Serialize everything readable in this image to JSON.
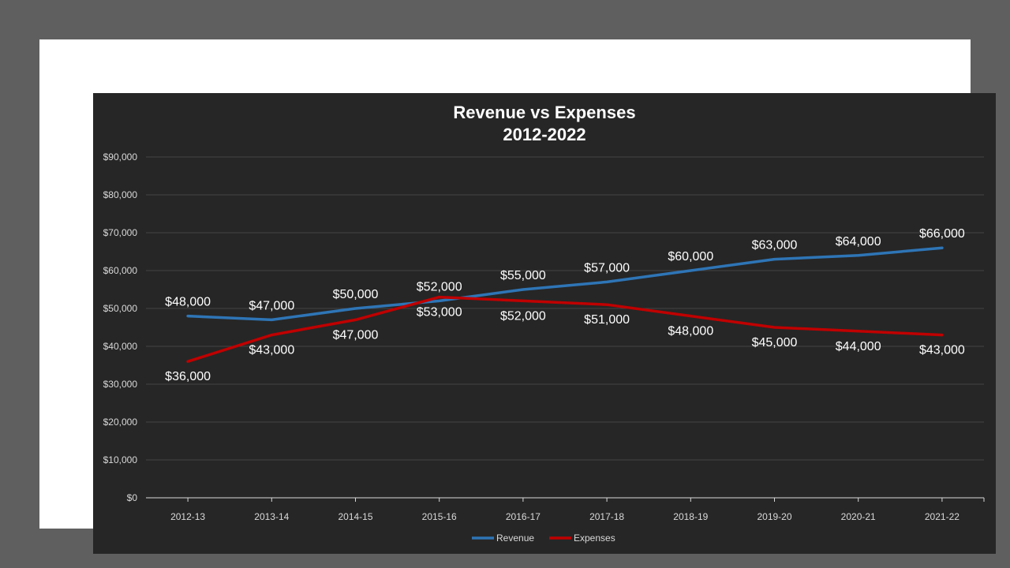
{
  "chart_data": {
    "type": "line",
    "title_lines": [
      "Revenue vs Expenses",
      "2012-2022"
    ],
    "categories": [
      "2012-13",
      "2013-14",
      "2014-15",
      "2015-16",
      "2016-17",
      "2017-18",
      "2018-19",
      "2019-20",
      "2020-21",
      "2021-22"
    ],
    "ylim": [
      0,
      90000
    ],
    "y_ticks": [
      0,
      10000,
      20000,
      30000,
      40000,
      50000,
      60000,
      70000,
      80000,
      90000
    ],
    "y_tick_labels": [
      "$0",
      "$10,000",
      "$20,000",
      "$30,000",
      "$40,000",
      "$50,000",
      "$60,000",
      "$70,000",
      "$80,000",
      "$90,000"
    ],
    "grid": true,
    "legend_position": "bottom",
    "series": [
      {
        "name": "Revenue",
        "color": "#2e75b6",
        "label_position": "above",
        "values": [
          48000,
          47000,
          50000,
          52000,
          55000,
          57000,
          60000,
          63000,
          64000,
          66000
        ],
        "data_labels": [
          "$48,000",
          "$47,000",
          "$50,000",
          "$52,000",
          "$55,000",
          "$57,000",
          "$60,000",
          "$63,000",
          "$64,000",
          "$66,000"
        ]
      },
      {
        "name": "Expenses",
        "color": "#c00000",
        "label_position": "below",
        "values": [
          36000,
          43000,
          47000,
          53000,
          52000,
          51000,
          48000,
          45000,
          44000,
          43000
        ],
        "data_labels": [
          "$36,000",
          "$43,000",
          "$47,000",
          "$53,000",
          "$52,000",
          "$51,000",
          "$48,000",
          "$45,000",
          "$44,000",
          "$43,000"
        ]
      }
    ]
  }
}
